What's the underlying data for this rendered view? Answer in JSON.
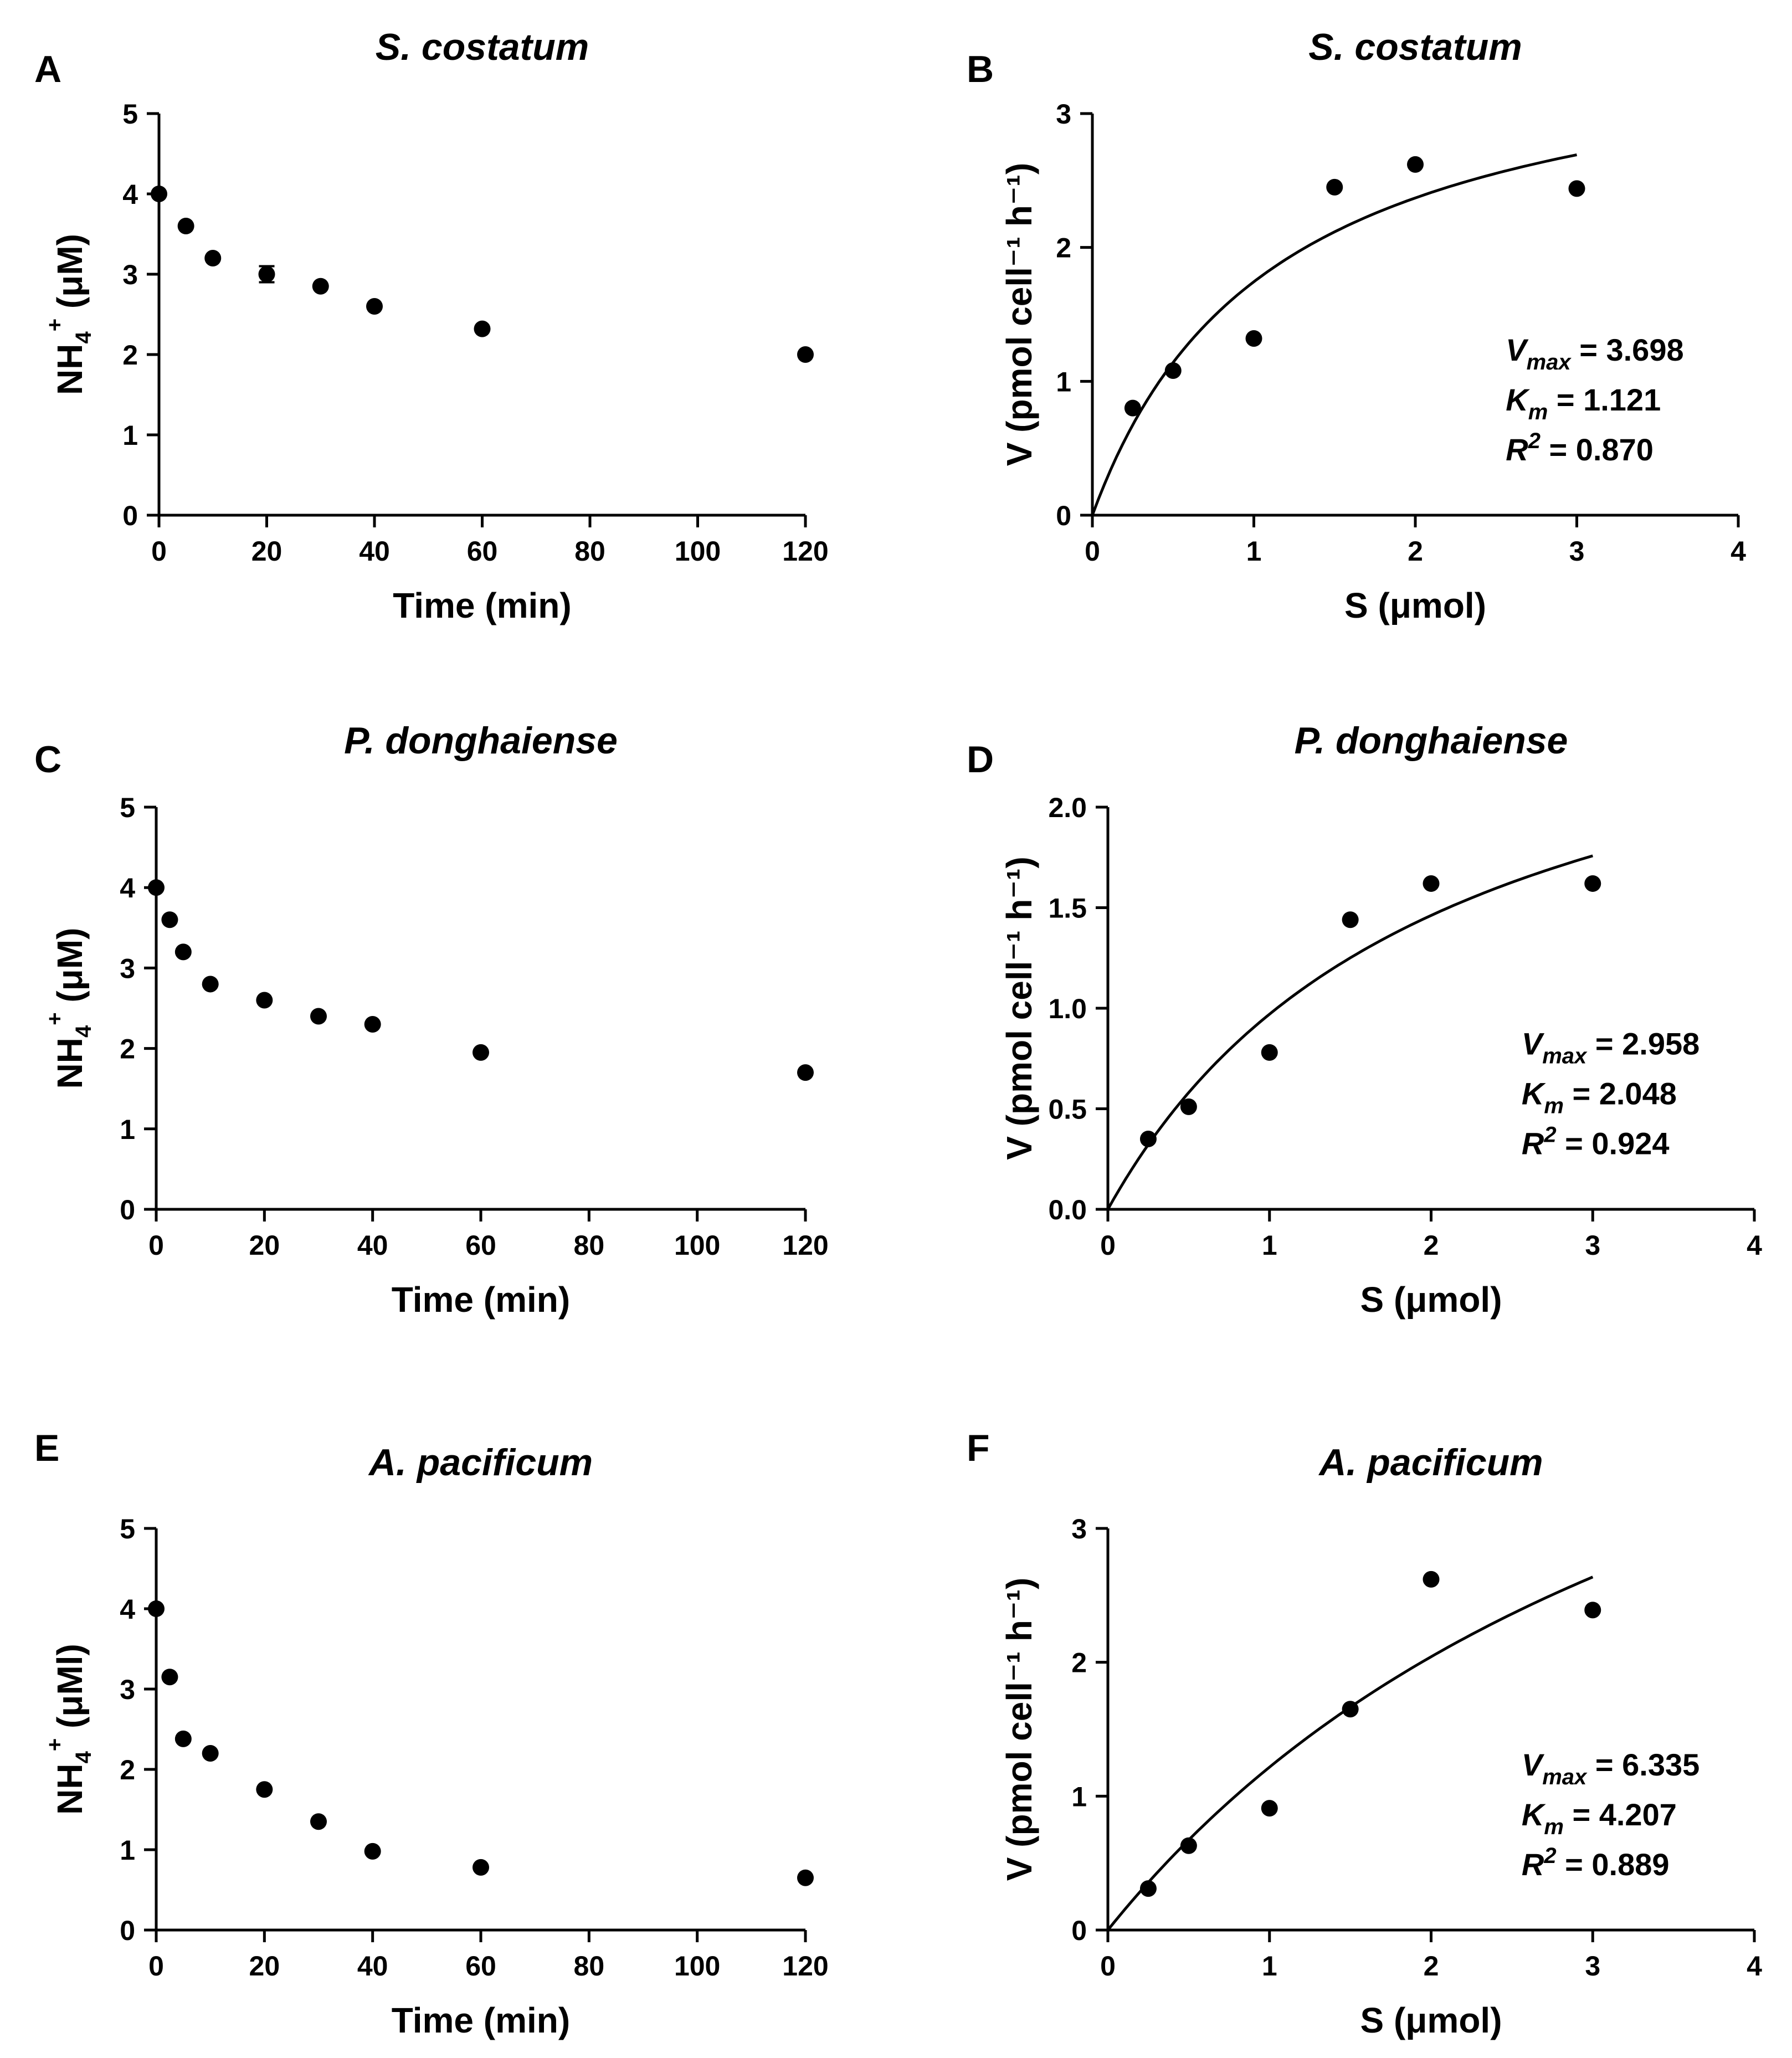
{
  "chart_data": [
    {
      "id": "A",
      "panel_letter": "A",
      "type": "scatter",
      "title": "S. costatum",
      "xlabel": "Time (min)",
      "ylabel": {
        "main": "NH",
        "sub": "4",
        "sup": "+",
        "unit": " (μM)"
      },
      "xlim": [
        0,
        120
      ],
      "ylim": [
        0,
        5
      ],
      "xticks": [
        0,
        20,
        40,
        60,
        80,
        100,
        120
      ],
      "yticks": [
        0,
        1,
        2,
        3,
        4,
        5
      ],
      "x": [
        0,
        5,
        10,
        20,
        30,
        40,
        60,
        120
      ],
      "y": [
        4.0,
        3.6,
        3.2,
        3.0,
        2.85,
        2.6,
        2.32,
        2.0
      ],
      "yerr": [
        0,
        0,
        0,
        0.1,
        0,
        0,
        0,
        0
      ]
    },
    {
      "id": "B",
      "panel_letter": "B",
      "type": "scatter",
      "title": "S. costatum",
      "xlabel": "S (μmol)",
      "ylabel": "V (pmol cell⁻¹ h⁻¹)",
      "xlim": [
        0,
        4
      ],
      "ylim": [
        0,
        3
      ],
      "xticks": [
        0,
        1,
        2,
        3,
        4
      ],
      "yticks": [
        0,
        1,
        2,
        3
      ],
      "x": [
        0.25,
        0.5,
        1,
        1.5,
        2,
        3
      ],
      "y": [
        0.8,
        1.08,
        1.32,
        2.45,
        2.62,
        2.44
      ],
      "fit": {
        "model": "Michaelis-Menten",
        "vmax": 3.698,
        "km": 1.121,
        "r2": 0.87,
        "xmax": 3
      },
      "annotation": {
        "vmax_label": "V",
        "vmax_sub": "max",
        "vmax_value": "= 3.698",
        "km_label": "K",
        "km_sub": "m",
        "km_value": "= 1.121",
        "r2_label": "R",
        "r2_sup": "2",
        "r2_value": "= 0.870"
      }
    },
    {
      "id": "C",
      "panel_letter": "C",
      "type": "scatter",
      "title": "P. donghaiense",
      "xlabel": "Time (min)",
      "ylabel": {
        "main": "NH",
        "sub": "4",
        "sup": "+",
        "unit": " (μM)"
      },
      "xlim": [
        0,
        120
      ],
      "ylim": [
        0,
        5
      ],
      "xticks": [
        0,
        20,
        40,
        60,
        80,
        100,
        120
      ],
      "yticks": [
        0,
        1,
        2,
        3,
        4,
        5
      ],
      "x": [
        0,
        2.5,
        5,
        10,
        20,
        30,
        40,
        60,
        120
      ],
      "y": [
        4.0,
        3.6,
        3.2,
        2.8,
        2.6,
        2.4,
        2.3,
        1.95,
        1.7
      ]
    },
    {
      "id": "D",
      "panel_letter": "D",
      "type": "scatter",
      "title": "P. donghaiense",
      "xlabel": "S (μmol)",
      "ylabel": "V (pmol cell⁻¹ h⁻¹)",
      "xlim": [
        0,
        4
      ],
      "ylim": [
        0,
        2
      ],
      "xticks": [
        0,
        1,
        2,
        3,
        4
      ],
      "yticks": [
        0,
        0.5,
        1,
        1.5,
        2
      ],
      "ytick_labels": [
        "0.0",
        "0.5",
        "1.0",
        "1.5",
        "2.0"
      ],
      "x": [
        0.25,
        0.5,
        1,
        1.5,
        2,
        3
      ],
      "y": [
        0.35,
        0.51,
        0.78,
        1.44,
        1.62,
        1.62
      ],
      "fit": {
        "model": "Michaelis-Menten",
        "vmax": 2.958,
        "km": 2.048,
        "r2": 0.924,
        "xmax": 3
      },
      "annotation": {
        "vmax_label": "V",
        "vmax_sub": "max",
        "vmax_value": "= 2.958",
        "km_label": "K",
        "km_sub": "m",
        "km_value": "= 2.048",
        "r2_label": "R",
        "r2_sup": "2",
        "r2_value": "= 0.924"
      }
    },
    {
      "id": "E",
      "panel_letter": "E",
      "type": "scatter",
      "title": "A. pacificum",
      "xlabel": "Time (min)",
      "ylabel": {
        "main": "NH",
        "sub": "4",
        "sup": "+",
        "unit": " (μMl)"
      },
      "xlim": [
        0,
        120
      ],
      "ylim": [
        0,
        5
      ],
      "xticks": [
        0,
        20,
        40,
        60,
        80,
        100,
        120
      ],
      "yticks": [
        0,
        1,
        2,
        3,
        4,
        5
      ],
      "x": [
        0,
        2.5,
        5,
        10,
        20,
        30,
        40,
        60,
        120
      ],
      "y": [
        4.0,
        3.15,
        2.38,
        2.2,
        1.75,
        1.35,
        0.98,
        0.78,
        0.65
      ]
    },
    {
      "id": "F",
      "panel_letter": "F",
      "type": "scatter",
      "title": "A. pacificum",
      "xlabel": "S (μmol)",
      "ylabel": "V (pmol cell⁻¹ h⁻¹)",
      "xlim": [
        0,
        4
      ],
      "ylim": [
        0,
        3
      ],
      "xticks": [
        0,
        1,
        2,
        3,
        4
      ],
      "yticks": [
        0,
        1,
        2,
        3
      ],
      "x": [
        0.25,
        0.5,
        1,
        1.5,
        2,
        3
      ],
      "y": [
        0.31,
        0.63,
        0.91,
        1.65,
        2.62,
        2.39
      ],
      "fit": {
        "model": "Michaelis-Menten",
        "vmax": 6.335,
        "km": 4.207,
        "r2": 0.889,
        "xmax": 3
      },
      "annotation": {
        "vmax_label": "V",
        "vmax_sub": "max",
        "vmax_value": "= 6.335",
        "km_label": "K",
        "km_sub": "m",
        "km_value": "= 4.207",
        "r2_label": "R",
        "r2_sup": "2",
        "r2_value": "= 0.889"
      }
    }
  ]
}
